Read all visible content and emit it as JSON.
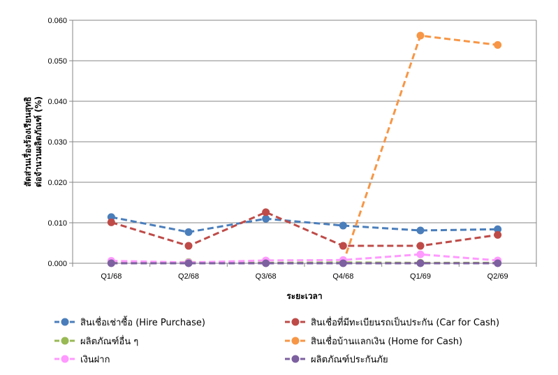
{
  "chart_data": {
    "type": "line",
    "xlabel": "ระยะเวลา",
    "ylabel": "สัดส่วนเรื่องร้องเรียนสุทธิ\nต่อจำนวนผลิตภัณฑ์ (%)",
    "categories": [
      "Q1/68",
      "Q2/68",
      "Q3/68",
      "Q4/68",
      "Q1/69",
      "Q2/69"
    ],
    "ylim": [
      0,
      0.06
    ],
    "yticks": [
      "0.000",
      "0.010",
      "0.020",
      "0.030",
      "0.040",
      "0.050",
      "0.060"
    ],
    "grid": true,
    "legend_position": "bottom",
    "series": [
      {
        "name": "สินเชื่อเช่าซื้อ (Hire Purchase)",
        "color": "#4a7ebb",
        "values": [
          0.0114,
          0.0077,
          0.011,
          0.0093,
          0.0081,
          0.0084
        ]
      },
      {
        "name": "สินเชื่อที่มีทะเบียนรถเป็นประกัน (Car for Cash)",
        "color": "#be4b48",
        "values": [
          0.0101,
          0.0043,
          0.0126,
          0.0043,
          0.0043,
          0.007
        ]
      },
      {
        "name": "ผลิตภัณฑ์อื่น ๆ",
        "color": "#98b954",
        "values": [
          0.0001,
          0.0003,
          0.0001,
          0.0002,
          0.0001,
          0.0001
        ]
      },
      {
        "name": "สินเชื่อบ้านแลกเงิน (Home for Cash)",
        "color": "#f79646",
        "values": [
          null,
          null,
          null,
          0.0001,
          0.0562,
          0.0539
        ]
      },
      {
        "name": "เงินฝาก",
        "color": "#ff99ff",
        "values": [
          0.0006,
          0.0002,
          0.0007,
          0.0008,
          0.0022,
          0.0007
        ]
      },
      {
        "name": "ผลิตภัณฑ์ประกันภัย",
        "color": "#7d60a0",
        "values": [
          0.0,
          0.0,
          0.0,
          0.0,
          0.0,
          0.0
        ]
      }
    ]
  }
}
